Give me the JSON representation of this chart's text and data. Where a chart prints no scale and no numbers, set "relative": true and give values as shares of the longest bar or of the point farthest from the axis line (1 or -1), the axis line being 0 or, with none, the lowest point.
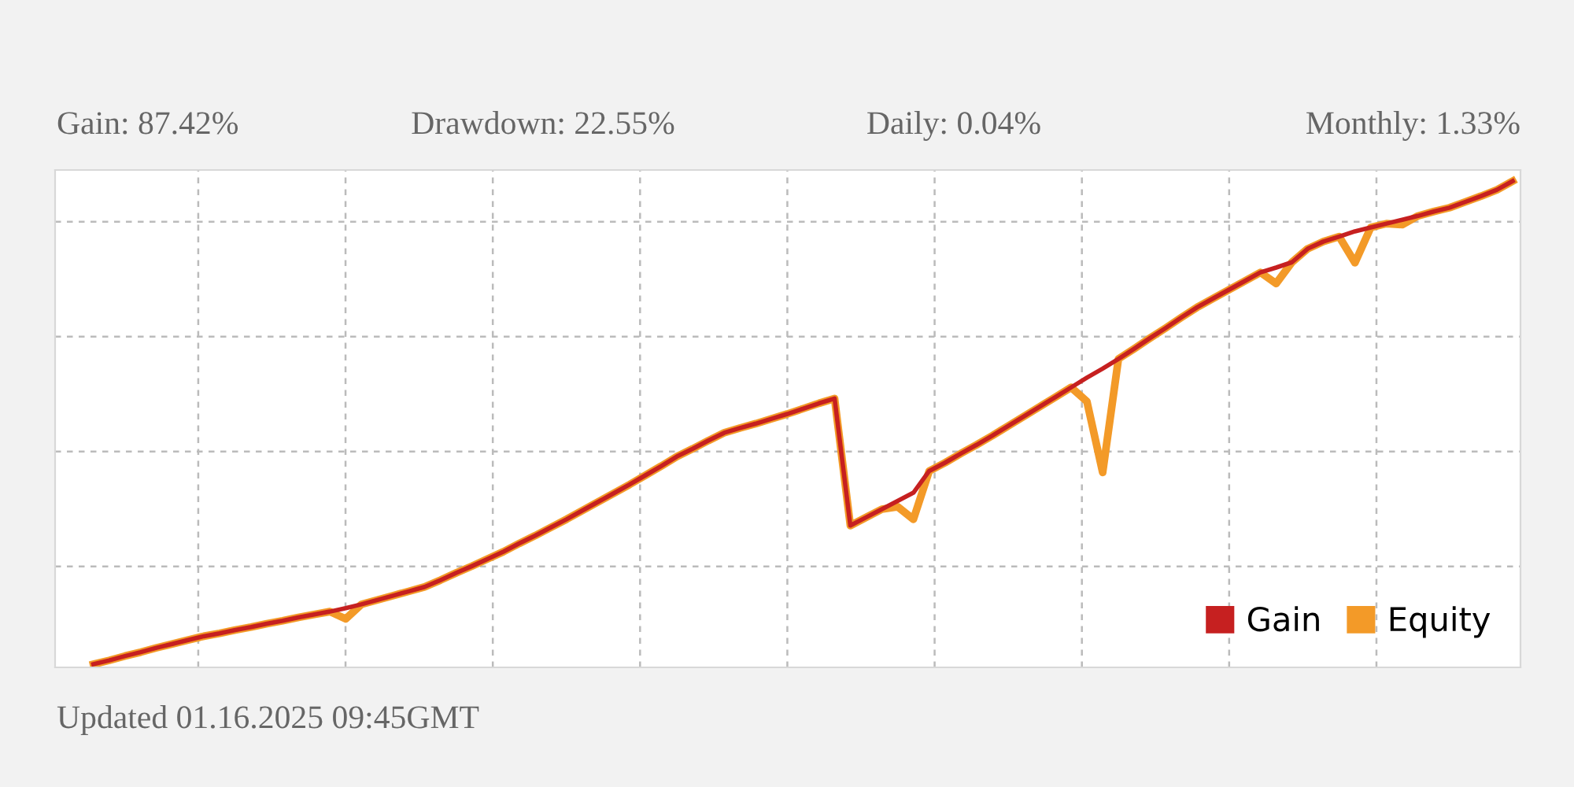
{
  "chart_data": {
    "type": "line",
    "relative": true,
    "grid": true,
    "legend": "bottom right",
    "line_style": "solid",
    "categories": [
      null,
      null,
      null,
      null,
      null,
      null,
      null,
      null,
      null,
      null,
      null,
      null,
      null,
      null,
      null,
      null,
      null,
      null,
      null,
      null,
      null,
      null,
      null,
      null,
      null,
      null,
      null,
      null,
      null,
      null,
      null,
      null,
      null,
      null,
      null,
      null,
      null,
      null,
      null,
      null,
      null,
      null,
      null,
      null,
      null,
      null,
      null,
      null,
      null,
      null,
      null,
      null,
      null,
      null,
      null,
      null,
      null,
      null,
      null,
      null,
      null,
      null,
      null,
      null,
      null,
      null,
      null,
      null,
      null,
      null,
      null,
      null,
      null,
      null,
      null,
      null,
      null,
      null,
      null,
      null,
      null,
      null,
      null,
      null,
      null,
      null,
      null,
      null,
      null,
      null,
      null
    ],
    "series": [
      {
        "name": "Equity",
        "color": "#f39a28",
        "values": [
          0,
          0.008,
          0.017,
          0.025,
          0.034,
          0.042,
          0.05,
          0.058,
          0.064,
          0.071,
          0.077,
          0.084,
          0.09,
          0.097,
          0.103,
          0.109,
          0.094,
          0.124,
          0.133,
          0.142,
          0.151,
          0.16,
          0.174,
          0.189,
          0.203,
          0.218,
          0.233,
          0.25,
          0.266,
          0.283,
          0.3,
          0.318,
          0.336,
          0.354,
          0.372,
          0.391,
          0.41,
          0.43,
          0.446,
          0.463,
          0.479,
          0.489,
          0.498,
          0.508,
          0.518,
          0.529,
          0.54,
          0.55,
          0.287,
          0.304,
          0.321,
          0.326,
          0.3,
          0.4,
          0.417,
          0.436,
          0.454,
          0.473,
          0.493,
          0.513,
          0.533,
          0.553,
          0.573,
          0.544,
          0.397,
          0.632,
          0.653,
          0.675,
          0.696,
          0.718,
          0.739,
          0.757,
          0.775,
          0.793,
          0.811,
          0.788,
          0.832,
          0.86,
          0.875,
          0.885,
          0.831,
          0.904,
          0.912,
          0.91,
          0.928,
          0.937,
          0.945,
          0.957,
          0.969,
          0.982,
          1.0
        ]
      },
      {
        "name": "Gain",
        "color": "#c62020",
        "values": [
          0,
          0.008,
          0.017,
          0.025,
          0.034,
          0.042,
          0.05,
          0.058,
          0.064,
          0.071,
          0.077,
          0.084,
          0.09,
          0.097,
          0.103,
          0.109,
          0.116,
          0.124,
          0.133,
          0.142,
          0.151,
          0.16,
          0.174,
          0.189,
          0.203,
          0.218,
          0.233,
          0.25,
          0.266,
          0.283,
          0.3,
          0.318,
          0.336,
          0.354,
          0.372,
          0.391,
          0.41,
          0.43,
          0.446,
          0.463,
          0.479,
          0.489,
          0.498,
          0.508,
          0.518,
          0.529,
          0.54,
          0.55,
          0.287,
          0.304,
          0.321,
          0.338,
          0.355,
          0.4,
          0.417,
          0.436,
          0.454,
          0.473,
          0.493,
          0.513,
          0.533,
          0.553,
          0.573,
          0.593,
          0.612,
          0.632,
          0.653,
          0.675,
          0.696,
          0.718,
          0.739,
          0.757,
          0.775,
          0.793,
          0.811,
          0.821,
          0.832,
          0.86,
          0.875,
          0.885,
          0.896,
          0.904,
          0.912,
          0.92,
          0.928,
          0.937,
          0.945,
          0.957,
          0.969,
          0.982,
          1.0
        ]
      }
    ],
    "annotations": [
      "Gain: 87.42%",
      "Drawdown: 22.55%",
      "Daily: 0.04%",
      "Monthly: 1.33%",
      "Updated 01.16.2025 09:45GMT"
    ]
  }
}
